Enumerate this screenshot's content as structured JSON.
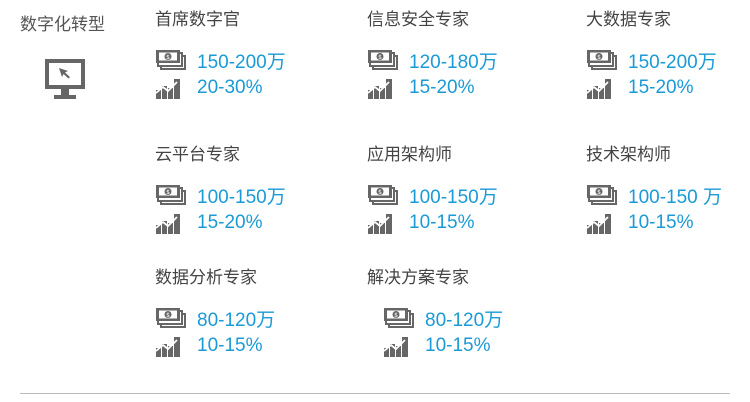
{
  "section": {
    "title": "数字化转型",
    "icon": "monitor-cursor-icon"
  },
  "colors": {
    "accent": "#1a9ad6",
    "icon": "#666666"
  },
  "roles": [
    {
      "title": "首席数字官",
      "salary": "150-200万",
      "growth": "20-30%"
    },
    {
      "title": "信息安全专家",
      "salary": "120-180万",
      "growth": "15-20%"
    },
    {
      "title": "大数据专家",
      "salary": "150-200万",
      "growth": "15-20%"
    },
    {
      "title": "云平台专家",
      "salary": "100-150万",
      "growth": "15-20%"
    },
    {
      "title": "应用架构师",
      "salary": "100-150万",
      "growth": "10-15%"
    },
    {
      "title": "技术架构师",
      "salary": "100-150 万",
      "growth": "10-15%"
    },
    {
      "title": "数据分析专家",
      "salary": "80-120万",
      "growth": "10-15%"
    },
    {
      "title": "解决方案专家",
      "salary": "80-120万",
      "growth": "10-15%"
    }
  ]
}
